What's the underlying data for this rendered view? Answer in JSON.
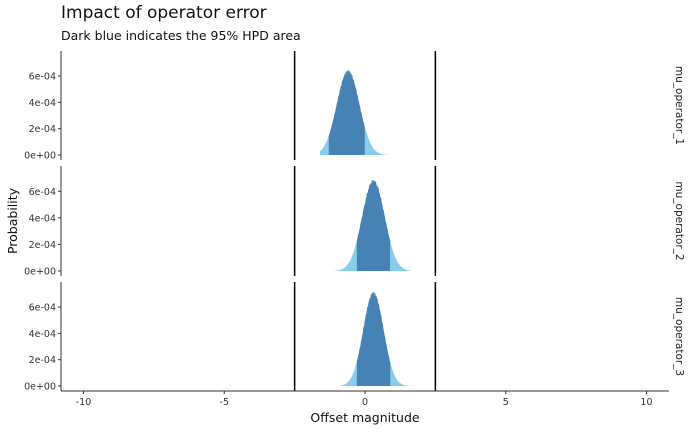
{
  "title": "Impact of operator error",
  "subtitle": "Dark blue indicates the 95% HPD area",
  "chart_data": {
    "type": "area",
    "title": "Impact of operator error",
    "subtitle": "Dark blue indicates the 95% HPD area",
    "xlabel": "Offset magnitude",
    "ylabel": "Probability",
    "xlim": [
      -10.8,
      10.8
    ],
    "ylim": [
      0,
      0.00076
    ],
    "x_ticks": [
      -10,
      -5,
      0,
      5,
      10
    ],
    "x_tick_labels": [
      "-10",
      "-5",
      "0",
      "5",
      "10"
    ],
    "y_ticks": [
      0,
      0.0002,
      0.0004,
      0.0006
    ],
    "y_tick_labels": [
      "0e+00",
      "2e-04",
      "4e-04",
      "6e-04"
    ],
    "vertical_lines": [
      -2.5,
      2.5
    ],
    "grid": false,
    "colors": {
      "hpd": "#4682b4",
      "tail": "#87ceeb",
      "reference_line": "#000000"
    },
    "panels": [
      {
        "name": "mu_operator_1",
        "mean": -0.6,
        "sd": 0.4,
        "peak": 0.00064,
        "hpd": [
          -1.3,
          0.0
        ],
        "range": [
          -1.6,
          0.9
        ]
      },
      {
        "name": "mu_operator_2",
        "mean": 0.3,
        "sd": 0.4,
        "peak": 0.00068,
        "hpd": [
          -0.3,
          0.9
        ],
        "range": [
          -1.1,
          1.6
        ]
      },
      {
        "name": "mu_operator_3",
        "mean": 0.3,
        "sd": 0.36,
        "peak": 0.00071,
        "hpd": [
          -0.3,
          0.9
        ],
        "range": [
          -0.9,
          1.6
        ]
      }
    ]
  }
}
